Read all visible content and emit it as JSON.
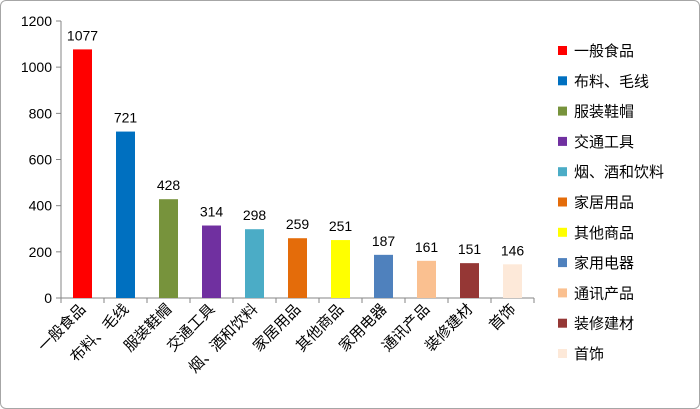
{
  "chart_data": {
    "type": "bar",
    "categories": [
      "一般食品",
      "布料、毛线",
      "服装鞋帽",
      "交通工具",
      "烟、酒和饮料",
      "家居用品",
      "其他商品",
      "家用电器",
      "通讯产品",
      "装修建材",
      "首饰"
    ],
    "values": [
      1077,
      721,
      428,
      314,
      298,
      259,
      251,
      187,
      161,
      151,
      146
    ],
    "data_labels": [
      "1077",
      "721",
      "428",
      "314",
      "298",
      "259",
      "251",
      "187",
      "161",
      "151",
      "146"
    ],
    "colors": [
      "#ff0000",
      "#0070c0",
      "#77933c",
      "#7030a0",
      "#4bacc6",
      "#e46c0a",
      "#ffff00",
      "#4f81bd",
      "#fac090",
      "#953735",
      "#fde9d9"
    ],
    "ylim": [
      0,
      1200
    ],
    "yticks": [
      0,
      200,
      400,
      600,
      800,
      1000,
      1200
    ],
    "ytick_labels": [
      "0",
      "200",
      "400",
      "600",
      "800",
      "1000",
      "1200"
    ],
    "legend": {
      "position": "right",
      "entries": [
        "一般食品",
        "布料、毛线",
        "服装鞋帽",
        "交通工具",
        "烟、酒和饮料",
        "家居用品",
        "其他商品",
        "家用电器",
        "通讯产品",
        "装修建材",
        "首饰"
      ]
    },
    "title": "",
    "xlabel": "",
    "ylabel": "",
    "grid": false
  }
}
